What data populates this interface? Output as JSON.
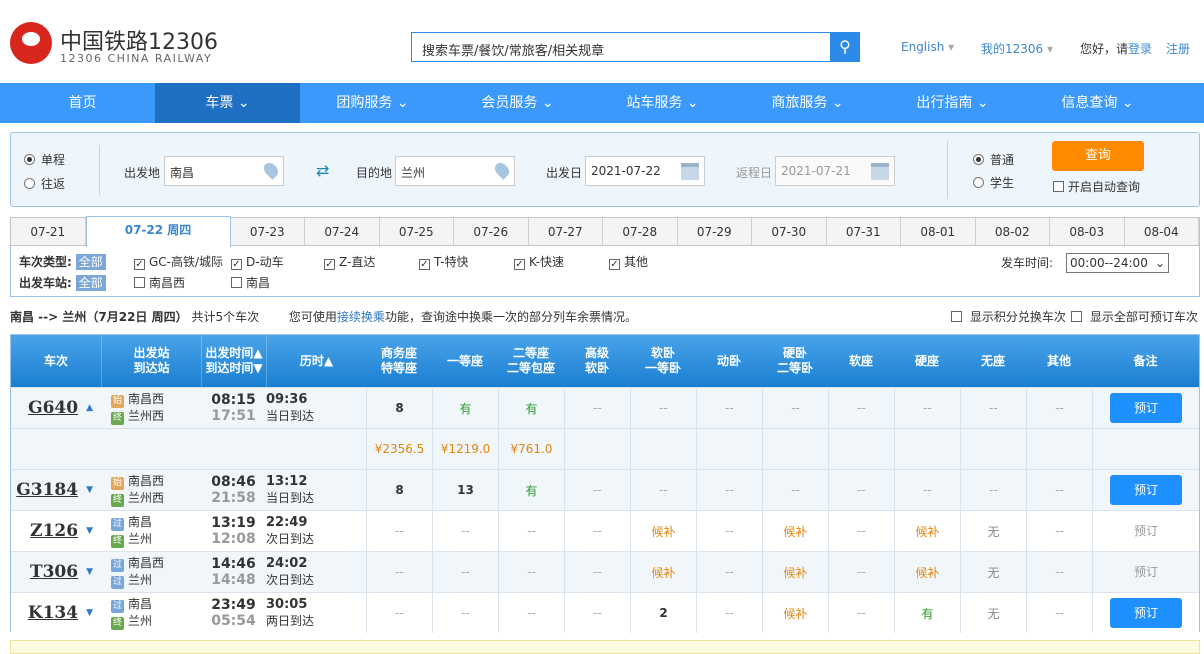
{
  "header": {
    "logo_cn": "中国铁路12306",
    "logo_en": "12306 CHINA RAILWAY",
    "search_placeholder": "搜索车票/餐饮/常旅客/相关规章",
    "english": "English",
    "my12306": "我的12306",
    "greeting": "您好，请",
    "login": "登录",
    "register": "注册"
  },
  "nav": [
    "首页",
    "车票",
    "团购服务",
    "会员服务",
    "站车服务",
    "商旅服务",
    "出行指南",
    "信息查询"
  ],
  "nav_active": 1,
  "form": {
    "one_way": "单程",
    "round_trip": "往返",
    "from_label": "出发地",
    "from": "南昌",
    "to_label": "目的地",
    "to": "兰州",
    "depart_label": "出发日",
    "depart": "2021-07-22",
    "return_label": "返程日",
    "return": "2021-07-21",
    "normal": "普通",
    "student": "学生",
    "query": "查询",
    "auto_query": "开启自动查询"
  },
  "dates": [
    "07-21",
    "07-22 周四",
    "07-23",
    "07-24",
    "07-25",
    "07-26",
    "07-27",
    "07-28",
    "07-29",
    "07-30",
    "07-31",
    "08-01",
    "08-02",
    "08-03",
    "08-04"
  ],
  "dates_active": 1,
  "filter": {
    "type_label": "车次类型:",
    "all": "全部",
    "types": [
      "GC-高铁/城际",
      "D-动车",
      "Z-直达",
      "T-特快",
      "K-快速",
      "其他"
    ],
    "station_label": "出发车站:",
    "stations": [
      "南昌西",
      "南昌"
    ],
    "time_label": "发车时间:",
    "time_value": "00:00--24:00"
  },
  "summary": {
    "route": "南昌 --> 兰州（7月22日 周四）",
    "count": "共计5个车次",
    "hint_pre": "您可使用",
    "hint_link": "接续换乘",
    "hint_post": "功能，查询途中换乘一次的部分列车余票情况。",
    "opt1": "显示积分兑换车次",
    "opt2": "显示全部可预订车次"
  },
  "columns": [
    "车次",
    "出发站\n到达站",
    "出发时间▲\n到达时间▼",
    "历时▲",
    "商务座\n特等座",
    "一等座",
    "二等座\n二等包座",
    "高级\n软卧",
    "软卧\n一等卧",
    "动卧",
    "硬卧\n二等卧",
    "软座",
    "硬座",
    "无座",
    "其他",
    "备注"
  ],
  "trains": [
    {
      "no": "G640",
      "expanded": true,
      "from_tag": "始",
      "from": "南昌西",
      "to_tag": "终",
      "to": "兰州西",
      "dep": "08:15",
      "arr": "17:51",
      "dur": "09:36",
      "day": "当日到达",
      "seats": [
        "8",
        "有",
        "有",
        "--",
        "--",
        "--",
        "--",
        "--",
        "--",
        "--",
        "--"
      ],
      "action": "预订",
      "bookable": true,
      "prices": [
        "¥2356.5",
        "¥1219.0",
        "¥761.0"
      ]
    },
    {
      "no": "G3184",
      "from_tag": "始",
      "from": "南昌西",
      "to_tag": "终",
      "to": "兰州西",
      "dep": "08:46",
      "arr": "21:58",
      "dur": "13:12",
      "day": "当日到达",
      "seats": [
        "8",
        "13",
        "有",
        "--",
        "--",
        "--",
        "--",
        "--",
        "--",
        "--",
        "--"
      ],
      "action": "预订",
      "bookable": true
    },
    {
      "no": "Z126",
      "from_tag": "过",
      "from": "南昌",
      "to_tag": "终",
      "to": "兰州",
      "dep": "13:19",
      "arr": "12:08",
      "dur": "22:49",
      "day": "次日到达",
      "seats": [
        "--",
        "--",
        "--",
        "--",
        "候补",
        "--",
        "候补",
        "--",
        "候补",
        "无",
        "--"
      ],
      "action": "预订",
      "bookable": false
    },
    {
      "no": "T306",
      "from_tag": "过",
      "from": "南昌西",
      "to_tag": "过",
      "to": "兰州",
      "dep": "14:46",
      "arr": "14:48",
      "dur": "24:02",
      "day": "次日到达",
      "seats": [
        "--",
        "--",
        "--",
        "--",
        "候补",
        "--",
        "候补",
        "--",
        "候补",
        "无",
        "--"
      ],
      "action": "预订",
      "bookable": false
    },
    {
      "no": "K134",
      "from_tag": "过",
      "from": "南昌",
      "to_tag": "终",
      "to": "兰州",
      "dep": "23:49",
      "arr": "05:54",
      "dur": "30:05",
      "day": "两日到达",
      "seats": [
        "--",
        "--",
        "--",
        "--",
        "2",
        "--",
        "候补",
        "--",
        "有",
        "无",
        "--"
      ],
      "action": "预订",
      "bookable": true
    }
  ],
  "colors": {
    "nav": "#3b99fc",
    "nav_active": "#1f6fc2",
    "query": "#ff8a00",
    "book": "#1e90ff",
    "available": "#2a9a2a",
    "waitlist": "#e2860c"
  }
}
